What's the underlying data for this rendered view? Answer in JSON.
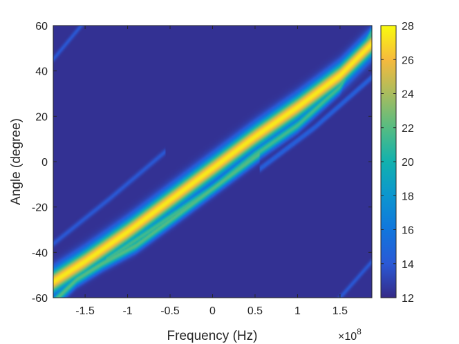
{
  "chart_data": {
    "type": "heatmap",
    "title": "",
    "xlabel": "Frequency (Hz)",
    "ylabel": "Angle (degree)",
    "x_exponent_label": "×10",
    "x_exponent_power": "8",
    "x_scale_factor": 100000000,
    "xlim": [
      -187500000,
      187500000
    ],
    "ylim": [
      -60,
      60
    ],
    "x_ticks": [
      -1.5,
      -1,
      -0.5,
      0,
      0.5,
      1,
      1.5
    ],
    "x_tick_labels": [
      "-1.5",
      "-1",
      "-0.5",
      "0",
      "0.5",
      "1",
      "1.5"
    ],
    "y_ticks": [
      -60,
      -40,
      -20,
      0,
      20,
      40,
      60
    ],
    "y_tick_labels": [
      "-60",
      "-40",
      "-20",
      "0",
      "20",
      "40",
      "60"
    ],
    "colorbar": {
      "range": [
        12,
        28
      ],
      "ticks": [
        12,
        14,
        16,
        18,
        20,
        22,
        24,
        26,
        28
      ],
      "tick_labels": [
        "12",
        "14",
        "16",
        "18",
        "20",
        "22",
        "24",
        "26",
        "28"
      ],
      "colormap": "parula"
    },
    "background_value": 12.3,
    "features": [
      {
        "name": "main-beam",
        "peak": 27.5,
        "points": [
          [
            -1.875,
            -53
          ],
          [
            -1.5,
            -44
          ],
          [
            -1.0,
            -31
          ],
          [
            -0.5,
            -17
          ],
          [
            0,
            -3
          ],
          [
            0.5,
            11
          ],
          [
            1.0,
            24
          ],
          [
            1.5,
            38
          ],
          [
            1.875,
            52
          ]
        ]
      },
      {
        "name": "upper-sidelobe",
        "peak": 21.5,
        "points": [
          [
            -1.2,
            -42
          ],
          [
            -0.6,
            -27
          ],
          [
            0,
            -12
          ],
          [
            0.5,
            3
          ],
          [
            1.0,
            16
          ],
          [
            1.5,
            33
          ],
          [
            1.875,
            57
          ]
        ]
      },
      {
        "name": "lower-sidelobe",
        "peak": 22.0,
        "points": [
          [
            -1.875,
            -62
          ],
          [
            -1.6,
            -52
          ],
          [
            -1.3,
            -45
          ],
          [
            -0.9,
            -37
          ],
          [
            -0.5,
            -26
          ],
          [
            0,
            -12
          ],
          [
            0.5,
            2
          ]
        ]
      },
      {
        "name": "faint-upper-left",
        "peak": 14.0,
        "points": [
          [
            -1.9,
            44
          ],
          [
            -1.5,
            62
          ]
        ]
      },
      {
        "name": "faint-right",
        "peak": 14.5,
        "points": [
          [
            0.6,
            -2
          ],
          [
            1.2,
            15
          ],
          [
            1.9,
            38
          ]
        ]
      },
      {
        "name": "faint-left",
        "peak": 14.0,
        "points": [
          [
            -1.9,
            -37
          ],
          [
            -1.2,
            -16
          ],
          [
            -0.6,
            3
          ]
        ]
      },
      {
        "name": "faint-lower-right",
        "peak": 14.0,
        "points": [
          [
            1.5,
            -60
          ],
          [
            1.9,
            -43
          ]
        ]
      }
    ]
  }
}
